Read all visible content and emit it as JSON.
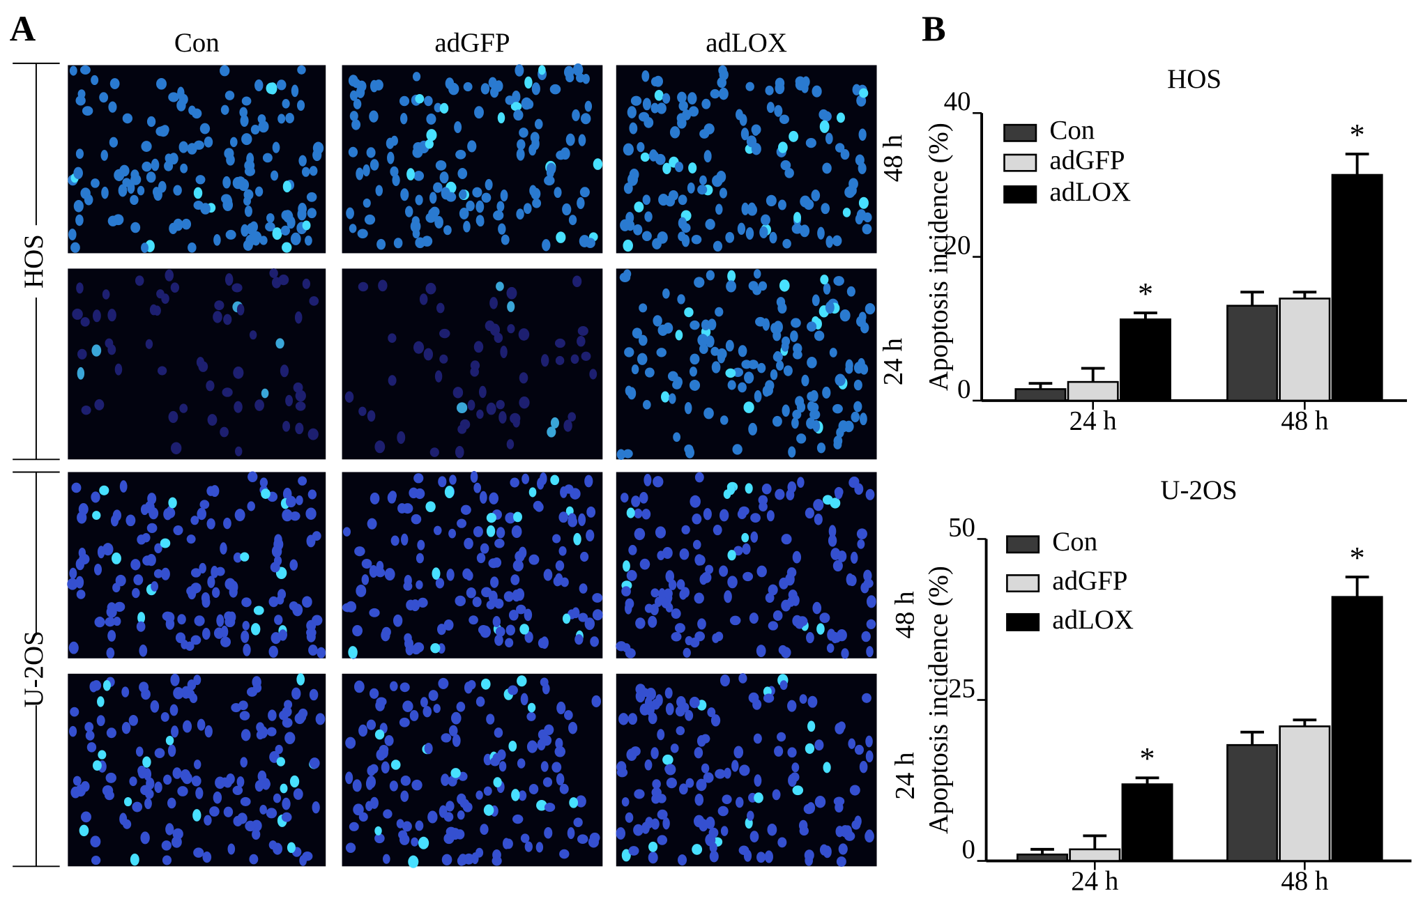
{
  "panel_a": {
    "label": "A",
    "columns": [
      "Con",
      "adGFP",
      "adLOX"
    ],
    "groups": [
      {
        "name": "HOS",
        "rows": [
          "48 h",
          "24 h"
        ]
      },
      {
        "name": "U-2OS",
        "rows": [
          "48 h",
          "24 h"
        ]
      }
    ]
  },
  "panel_b": {
    "label": "B"
  },
  "chart_data": [
    {
      "type": "bar",
      "title": "HOS",
      "y_label": "Apoptosis incidence (%)",
      "categories": [
        "24 h",
        "48 h"
      ],
      "series": [
        {
          "name": "Con",
          "color": "#3a3a3a",
          "values": [
            1.6,
            13.2
          ],
          "errors": [
            0.8,
            1.9
          ]
        },
        {
          "name": "adGFP",
          "color": "#d9d9d9",
          "values": [
            2.6,
            14.2
          ],
          "errors": [
            1.9,
            0.9
          ]
        },
        {
          "name": "adLOX",
          "color": "#000000",
          "values": [
            11.3,
            31.4
          ],
          "errors": [
            0.9,
            2.9
          ],
          "annotations": [
            "*",
            "*"
          ]
        }
      ],
      "ylim": [
        0,
        40
      ],
      "yticks": [
        0,
        20,
        40
      ],
      "legend": "upper-left"
    },
    {
      "type": "bar",
      "title": "U-2OS",
      "y_label": "Apoptosis incidence (%)",
      "categories": [
        "24 h",
        "48 h"
      ],
      "series": [
        {
          "name": "Con",
          "color": "#3a3a3a",
          "values": [
            1,
            18
          ],
          "errors": [
            0.8,
            2
          ]
        },
        {
          "name": "adGFP",
          "color": "#d9d9d9",
          "values": [
            1.8,
            20.9
          ],
          "errors": [
            2.1,
            1
          ]
        },
        {
          "name": "adLOX",
          "color": "#000000",
          "values": [
            11.9,
            41
          ],
          "errors": [
            1,
            3.1
          ],
          "annotations": [
            "*",
            "*"
          ]
        }
      ],
      "ylim": [
        0,
        50
      ],
      "yticks": [
        0,
        25,
        50
      ],
      "legend": "upper-left"
    }
  ]
}
